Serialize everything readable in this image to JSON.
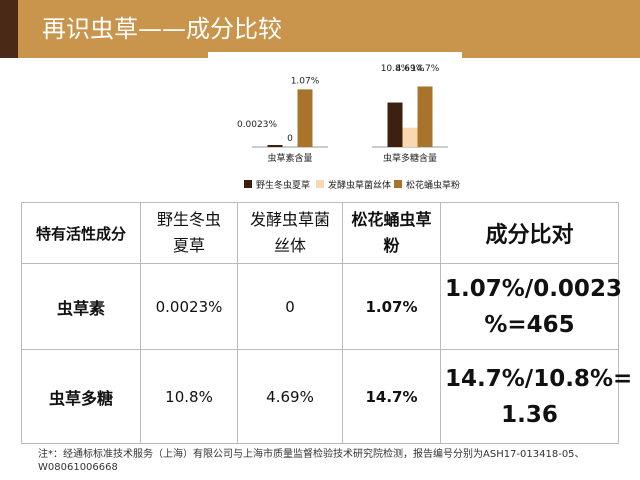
{
  "slide": {
    "title": "再识虫草——成分比较"
  },
  "chart_data": {
    "type": "bar",
    "categories": [
      "虫草素含量",
      "虫草多糖含量"
    ],
    "series": [
      {
        "name": "野生冬虫夏草",
        "color": "#3d2010",
        "values": [
          0.0023,
          10.8
        ],
        "labels": [
          "0.0023%",
          "10.8%"
        ]
      },
      {
        "name": "发酵虫草菌丝体",
        "color": "#f7d8b0",
        "values": [
          0,
          4.69
        ],
        "labels": [
          "0",
          "4.69%"
        ]
      },
      {
        "name": "松花蛹虫草粉",
        "color": "#a8742c",
        "values": [
          1.07,
          14.7
        ],
        "labels": [
          "1.07%",
          "14.7%"
        ]
      }
    ],
    "panel_ylim": [
      [
        0,
        1.3
      ],
      [
        0,
        17
      ]
    ],
    "legend_position": "bottom"
  },
  "table": {
    "header": {
      "label": "特有活性成分",
      "col_wild": [
        "野生冬虫",
        "夏草"
      ],
      "col_ferment": [
        "发酵虫草菌",
        "丝体"
      ],
      "col_pine": [
        "松花蛹虫草",
        "粉"
      ],
      "col_compare": "成分比对"
    },
    "rows": [
      {
        "label": "虫草素",
        "wild": "0.0023%",
        "ferment": "0",
        "pine": "1.07%",
        "ratio": [
          "1.07%/0.0023",
          "%=465"
        ]
      },
      {
        "label": "虫草多糖",
        "wild": "10.8%",
        "ferment": "4.69%",
        "pine": "14.7%",
        "ratio": [
          "14.7%/10.8%=",
          "1.36"
        ]
      }
    ]
  },
  "footnote": "注*：经通标标准技术服务（上海）有限公司与上海市质量监督检验技术研究院检测，报告编号分别为ASH17-013418-05、W08061006668"
}
